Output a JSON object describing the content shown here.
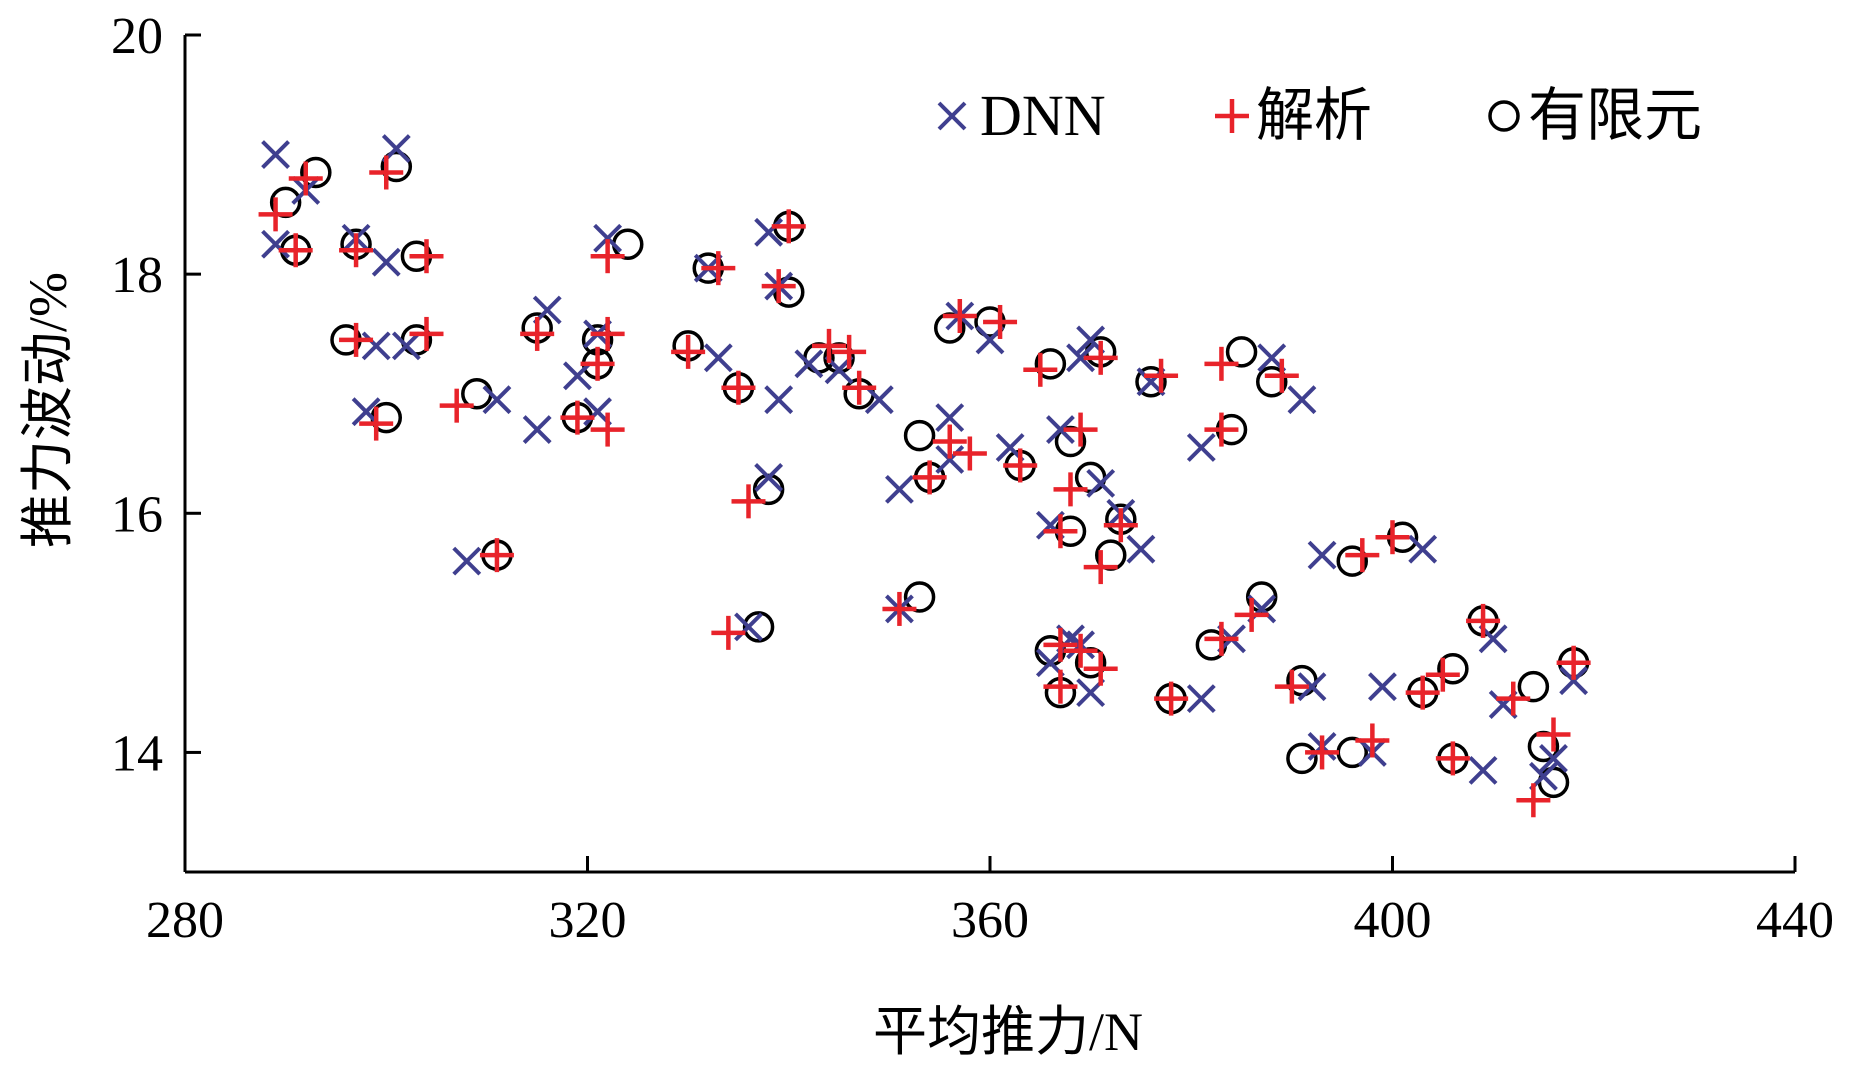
{
  "chart_data": {
    "type": "scatter",
    "xlabel": "平均推力/N",
    "ylabel": "推力波动/%",
    "xlim": [
      280,
      440
    ],
    "ylim": [
      13,
      20
    ],
    "xticks": [
      280,
      320,
      360,
      400,
      440
    ],
    "yticks": [
      14,
      16,
      18,
      20
    ],
    "xtick_labels": [
      "280",
      "320",
      "360",
      "400",
      "440"
    ],
    "ytick_labels": [
      "14",
      "16",
      "18",
      "20"
    ],
    "grid": false,
    "legend_position": "top-right",
    "series": [
      {
        "name": "DNN",
        "marker": "x",
        "color": "#3f3f8f",
        "points": [
          [
            289,
            19.0
          ],
          [
            289,
            18.25
          ],
          [
            292,
            18.7
          ],
          [
            297,
            18.3
          ],
          [
            300,
            18.1
          ],
          [
            301,
            19.05
          ],
          [
            299,
            17.4
          ],
          [
            302,
            17.4
          ],
          [
            298,
            16.85
          ],
          [
            308,
            15.6
          ],
          [
            311,
            16.95
          ],
          [
            315,
            16.7
          ],
          [
            316,
            17.7
          ],
          [
            319,
            17.15
          ],
          [
            321,
            16.85
          ],
          [
            322,
            18.3
          ],
          [
            321,
            17.5
          ],
          [
            332,
            18.05
          ],
          [
            333,
            17.3
          ],
          [
            338,
            18.35
          ],
          [
            339,
            17.9
          ],
          [
            339,
            16.95
          ],
          [
            338,
            16.3
          ],
          [
            336,
            15.05
          ],
          [
            342,
            17.25
          ],
          [
            345,
            17.2
          ],
          [
            349,
            16.95
          ],
          [
            351,
            16.2
          ],
          [
            351,
            15.2
          ],
          [
            356,
            16.8
          ],
          [
            356,
            16.45
          ],
          [
            357,
            17.65
          ],
          [
            360,
            17.45
          ],
          [
            362,
            16.55
          ],
          [
            366,
            15.9
          ],
          [
            367,
            16.7
          ],
          [
            366,
            14.75
          ],
          [
            368,
            14.95
          ],
          [
            369,
            14.9
          ],
          [
            369,
            17.3
          ],
          [
            370,
            17.45
          ],
          [
            370,
            14.5
          ],
          [
            371,
            16.25
          ],
          [
            373,
            16.0
          ],
          [
            375,
            15.7
          ],
          [
            376,
            17.1
          ],
          [
            381,
            16.55
          ],
          [
            381,
            14.45
          ],
          [
            384,
            14.95
          ],
          [
            387,
            15.2
          ],
          [
            388,
            17.3
          ],
          [
            391,
            16.95
          ],
          [
            392,
            14.55
          ],
          [
            393,
            15.65
          ],
          [
            393,
            14.05
          ],
          [
            398,
            14.0
          ],
          [
            399,
            14.55
          ],
          [
            403,
            15.7
          ],
          [
            409,
            13.85
          ],
          [
            410,
            14.95
          ],
          [
            411,
            14.4
          ],
          [
            415,
            13.8
          ],
          [
            416,
            13.95
          ],
          [
            418,
            14.6
          ]
        ]
      },
      {
        "name": "解析",
        "marker": "+",
        "color": "#e8232a",
        "points": [
          [
            289,
            18.5
          ],
          [
            291,
            18.2
          ],
          [
            292,
            18.8
          ],
          [
            300,
            18.85
          ],
          [
            297,
            18.2
          ],
          [
            304,
            18.15
          ],
          [
            297,
            17.45
          ],
          [
            304,
            17.5
          ],
          [
            299,
            16.75
          ],
          [
            307,
            16.9
          ],
          [
            311,
            15.65
          ],
          [
            315,
            17.5
          ],
          [
            319,
            16.8
          ],
          [
            321,
            17.25
          ],
          [
            322,
            17.5
          ],
          [
            322,
            18.15
          ],
          [
            322,
            16.7
          ],
          [
            330,
            17.35
          ],
          [
            333,
            18.05
          ],
          [
            335,
            17.05
          ],
          [
            334,
            15.0
          ],
          [
            336,
            16.1
          ],
          [
            339,
            17.9
          ],
          [
            340,
            18.4
          ],
          [
            344,
            17.4
          ],
          [
            346,
            17.35
          ],
          [
            347,
            17.05
          ],
          [
            351,
            15.2
          ],
          [
            354,
            16.3
          ],
          [
            356,
            16.6
          ],
          [
            357,
            17.65
          ],
          [
            358,
            16.5
          ],
          [
            361,
            17.6
          ],
          [
            363,
            16.4
          ],
          [
            365,
            17.2
          ],
          [
            367,
            15.85
          ],
          [
            367,
            14.9
          ],
          [
            367,
            14.55
          ],
          [
            368,
            16.2
          ],
          [
            369,
            16.7
          ],
          [
            369,
            14.85
          ],
          [
            371,
            17.3
          ],
          [
            371,
            14.7
          ],
          [
            371,
            15.55
          ],
          [
            373,
            15.9
          ],
          [
            377,
            17.15
          ],
          [
            378,
            14.45
          ],
          [
            383,
            17.25
          ],
          [
            383,
            16.7
          ],
          [
            383,
            14.95
          ],
          [
            386,
            15.15
          ],
          [
            389,
            17.15
          ],
          [
            390,
            14.55
          ],
          [
            393,
            14.0
          ],
          [
            397,
            15.65
          ],
          [
            398,
            14.1
          ],
          [
            400,
            15.8
          ],
          [
            403,
            14.5
          ],
          [
            405,
            14.65
          ],
          [
            406,
            13.95
          ],
          [
            409,
            15.1
          ],
          [
            412,
            14.45
          ],
          [
            414,
            13.6
          ],
          [
            416,
            14.15
          ],
          [
            418,
            14.75
          ]
        ]
      },
      {
        "name": "有限元",
        "marker": "o",
        "color": "#000000",
        "points": [
          [
            290,
            18.6
          ],
          [
            291,
            18.2
          ],
          [
            293,
            18.85
          ],
          [
            297,
            18.25
          ],
          [
            303,
            18.15
          ],
          [
            301,
            18.9
          ],
          [
            296,
            17.45
          ],
          [
            303,
            17.45
          ],
          [
            300,
            16.8
          ],
          [
            309,
            17.0
          ],
          [
            311,
            15.65
          ],
          [
            315,
            17.55
          ],
          [
            319,
            16.8
          ],
          [
            321,
            17.45
          ],
          [
            321,
            17.25
          ],
          [
            324,
            18.25
          ],
          [
            330,
            17.4
          ],
          [
            332,
            18.05
          ],
          [
            335,
            17.05
          ],
          [
            337,
            15.05
          ],
          [
            338,
            16.2
          ],
          [
            340,
            17.85
          ],
          [
            340,
            18.4
          ],
          [
            343,
            17.3
          ],
          [
            345,
            17.3
          ],
          [
            347,
            17.0
          ],
          [
            353,
            16.65
          ],
          [
            353,
            15.3
          ],
          [
            354,
            16.3
          ],
          [
            356,
            17.55
          ],
          [
            360,
            17.6
          ],
          [
            363,
            16.4
          ],
          [
            366,
            17.25
          ],
          [
            366,
            14.85
          ],
          [
            367,
            14.5
          ],
          [
            368,
            15.85
          ],
          [
            368,
            16.6
          ],
          [
            370,
            14.75
          ],
          [
            370,
            16.3
          ],
          [
            371,
            17.35
          ],
          [
            372,
            15.65
          ],
          [
            373,
            15.95
          ],
          [
            376,
            17.1
          ],
          [
            378,
            14.45
          ],
          [
            382,
            14.9
          ],
          [
            384,
            16.7
          ],
          [
            385,
            17.35
          ],
          [
            387,
            15.3
          ],
          [
            388,
            17.1
          ],
          [
            391,
            14.6
          ],
          [
            391,
            13.95
          ],
          [
            396,
            15.6
          ],
          [
            396,
            14.0
          ],
          [
            401,
            15.8
          ],
          [
            403,
            14.5
          ],
          [
            406,
            13.95
          ],
          [
            406,
            14.7
          ],
          [
            409,
            15.1
          ],
          [
            414,
            14.55
          ],
          [
            415,
            14.05
          ],
          [
            416,
            13.75
          ],
          [
            418,
            14.75
          ]
        ]
      }
    ]
  }
}
